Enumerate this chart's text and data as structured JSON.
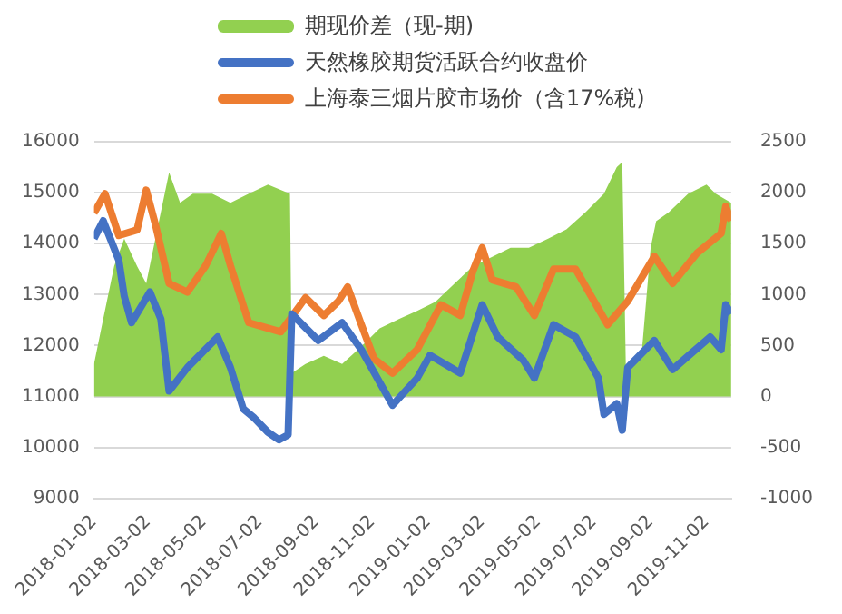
{
  "chart_data": {
    "type": "line",
    "legend": "top",
    "grid": "y",
    "marker": "none",
    "line_style": "solid",
    "xlim": [
      "2018-01-02",
      "2019-11-29"
    ],
    "xticks": [
      "2018-01-02",
      "2018-03-02",
      "2018-05-02",
      "2018-07-02",
      "2018-09-02",
      "2018-11-02",
      "2019-01-02",
      "2019-03-02",
      "2019-05-02",
      "2019-07-02",
      "2019-09-02",
      "2019-11-02"
    ],
    "ylim": [
      9000,
      16000
    ],
    "yticks": [
      9000,
      10000,
      11000,
      12000,
      13000,
      14000,
      15000,
      16000
    ],
    "y2lim": [
      -1000,
      2500
    ],
    "y2ticks": [
      -1000,
      -500,
      0,
      500,
      1000,
      1500,
      2000,
      2500
    ],
    "series": [
      {
        "name": "期现价差（现-期)",
        "type": "area",
        "axis": "y2",
        "color": "#92d050",
        "x": [
          "2018-01-02",
          "2018-01-12",
          "2018-01-24",
          "2018-02-04",
          "2018-02-18",
          "2018-02-28",
          "2018-03-10",
          "2018-03-25",
          "2018-04-06",
          "2018-04-20",
          "2018-05-11",
          "2018-05-31",
          "2018-06-20",
          "2018-07-11",
          "2018-08-04",
          "2018-08-06",
          "2018-08-21",
          "2018-09-10",
          "2018-09-30",
          "2018-10-21",
          "2018-11-10",
          "2018-12-01",
          "2018-12-21",
          "2019-01-10",
          "2019-01-31",
          "2019-02-20",
          "2019-03-13",
          "2019-04-02",
          "2019-04-22",
          "2019-05-13",
          "2019-06-02",
          "2019-06-23",
          "2019-07-13",
          "2019-07-27",
          "2019-08-02",
          "2019-08-06",
          "2019-08-23",
          "2019-09-02",
          "2019-09-08",
          "2019-09-22",
          "2019-10-13",
          "2019-11-02",
          "2019-11-12",
          "2019-11-29"
        ],
        "values": [
          320,
          760,
          1280,
          1550,
          1280,
          1110,
          1550,
          2200,
          1900,
          1990,
          1990,
          1900,
          1990,
          2080,
          1990,
          230,
          320,
          400,
          320,
          490,
          670,
          760,
          840,
          930,
          1110,
          1280,
          1370,
          1460,
          1460,
          1550,
          1640,
          1810,
          1990,
          2250,
          2300,
          230,
          400,
          1460,
          1720,
          1810,
          1990,
          2080,
          1990,
          1900
        ]
      },
      {
        "name": "天然橡胶期货活跃合约收盘价",
        "color": "#4472c4",
        "x": [
          "2018-01-02",
          "2018-01-12",
          "2018-01-29",
          "2018-02-04",
          "2018-02-12",
          "2018-03-04",
          "2018-03-16",
          "2018-03-25",
          "2018-04-14",
          "2018-05-17",
          "2018-05-31",
          "2018-06-14",
          "2018-06-26",
          "2018-07-11",
          "2018-07-23",
          "2018-08-02",
          "2018-08-06",
          "2018-09-04",
          "2018-09-30",
          "2018-10-21",
          "2018-11-24",
          "2018-12-21",
          "2019-01-04",
          "2019-02-06",
          "2019-03-02",
          "2019-03-19",
          "2019-04-16",
          "2019-04-28",
          "2019-05-19",
          "2019-06-12",
          "2019-07-07",
          "2019-07-13",
          "2019-07-27",
          "2019-08-02",
          "2019-08-08",
          "2019-09-06",
          "2019-09-26",
          "2019-11-06",
          "2019-11-18",
          "2019-11-23",
          "2019-11-29"
        ],
        "values": [
          14100,
          14450,
          13680,
          12970,
          12450,
          13050,
          12520,
          11110,
          11570,
          12170,
          11570,
          10760,
          10580,
          10300,
          10150,
          10250,
          12620,
          12100,
          12450,
          11920,
          10830,
          11360,
          11810,
          11460,
          12800,
          12170,
          11710,
          11360,
          12410,
          12170,
          11360,
          10650,
          10860,
          10340,
          11570,
          12100,
          11530,
          12170,
          11920,
          12800,
          12620
        ]
      },
      {
        "name": "上海泰三烟片胶市场价（含17%税)",
        "color": "#ed7d31",
        "x": [
          "2018-01-02",
          "2018-01-14",
          "2018-01-29",
          "2018-02-18",
          "2018-02-28",
          "2018-03-10",
          "2018-03-25",
          "2018-04-14",
          "2018-05-04",
          "2018-05-21",
          "2018-05-31",
          "2018-06-20",
          "2018-07-25",
          "2018-08-21",
          "2018-09-10",
          "2018-09-26",
          "2018-10-06",
          "2018-10-21",
          "2018-11-04",
          "2018-11-24",
          "2018-12-21",
          "2019-01-16",
          "2019-02-06",
          "2019-02-20",
          "2019-03-02",
          "2019-03-13",
          "2019-04-08",
          "2019-04-28",
          "2019-05-19",
          "2019-06-12",
          "2019-06-29",
          "2019-07-17",
          "2019-08-08",
          "2019-09-06",
          "2019-09-26",
          "2019-10-23",
          "2019-11-18",
          "2019-11-23",
          "2019-11-29"
        ],
        "values": [
          14600,
          14980,
          14160,
          14270,
          15050,
          14380,
          13220,
          13050,
          13570,
          14200,
          13570,
          12450,
          12270,
          12940,
          12590,
          12870,
          13150,
          12410,
          11740,
          11460,
          11920,
          12800,
          12590,
          13470,
          13920,
          13290,
          13150,
          12590,
          13500,
          13500,
          12970,
          12410,
          12870,
          13750,
          13220,
          13820,
          14200,
          14730,
          14450
        ]
      }
    ]
  }
}
